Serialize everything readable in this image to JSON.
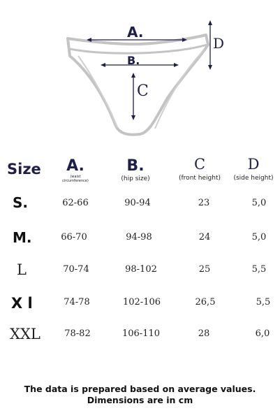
{
  "diagram": {
    "label_a": "A.",
    "label_b": "B.",
    "label_c": "C",
    "label_d": "D"
  },
  "table": {
    "headers": {
      "size": "Size",
      "a": "A.",
      "a_sub": "(waist circumference)",
      "b": "B.",
      "b_sub": "(hip size)",
      "c": "C",
      "c_sub": "(front height)",
      "d": "D",
      "d_sub": "(side height)"
    },
    "rows": [
      {
        "size": "S.",
        "a": "62-66",
        "b": "90-94",
        "c": "23",
        "d": "5,0"
      },
      {
        "size": "M.",
        "a": "66-70",
        "b": "94-98",
        "c": "24",
        "d": "5,0"
      },
      {
        "size": "L",
        "a": "70-74",
        "b": "98-102",
        "c": "25",
        "d": "5,5"
      },
      {
        "size": "X l",
        "a": "74-78",
        "b": "102-106",
        "c": "26,5",
        "d": "5,5"
      },
      {
        "size": "XXL",
        "a": "78-82",
        "b": "106-110",
        "c": "28",
        "d": "6,0"
      }
    ]
  },
  "footer": {
    "line1": "The data is prepared based on average values.",
    "line2": "Dimensions are in cm"
  }
}
